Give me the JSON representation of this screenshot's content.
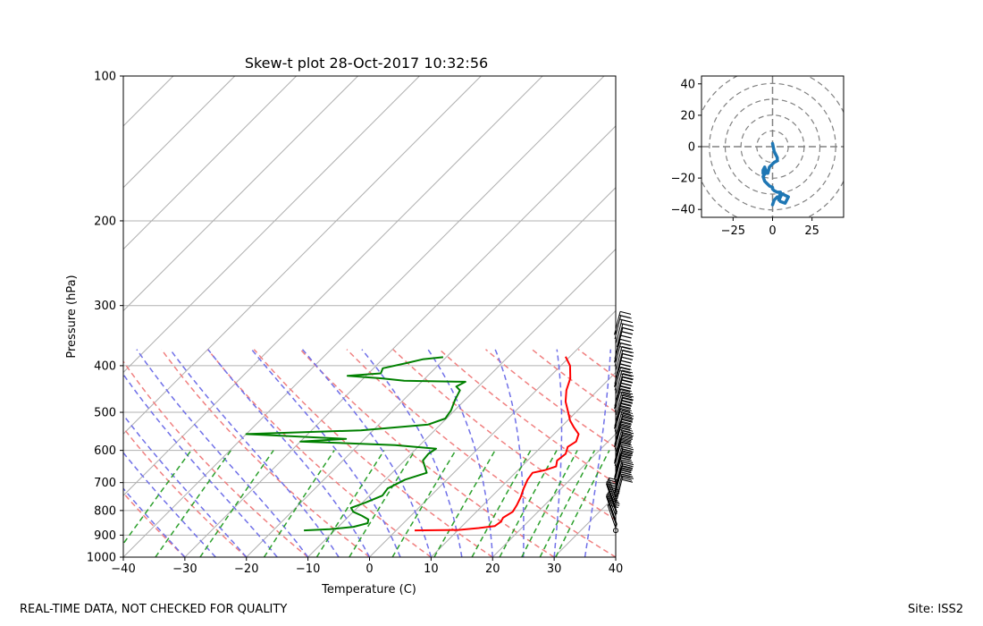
{
  "chart_data": [
    {
      "type": "skew-t",
      "title": "Skew-t plot 28-Oct-2017 10:32:56",
      "xlabel": "Temperature (C)",
      "ylabel": "Pressure (hPa)",
      "xlim": [
        -40,
        40
      ],
      "ylim": [
        1000,
        100
      ],
      "x_ticks": [
        -40,
        -30,
        -20,
        -10,
        0,
        10,
        20,
        30,
        40
      ],
      "x_tick_labels": [
        "−40",
        "−30",
        "−20",
        "−10",
        "0",
        "10",
        "20",
        "30",
        "40"
      ],
      "y_ticks": [
        100,
        200,
        300,
        400,
        500,
        600,
        700,
        800,
        900,
        1000
      ],
      "y_tick_labels": [
        "100",
        "200",
        "300",
        "400",
        "500",
        "600",
        "700",
        "800",
        "900",
        "1000"
      ],
      "grid": true,
      "series": [
        {
          "name": "Temperature",
          "color": "#ff0000",
          "points": [
            {
              "p": 880,
              "t": 3.0
            },
            {
              "p": 878,
              "t": 10.0
            },
            {
              "p": 870,
              "t": 13.0
            },
            {
              "p": 862,
              "t": 15.3
            },
            {
              "p": 845,
              "t": 15.6
            },
            {
              "p": 828,
              "t": 15.3
            },
            {
              "p": 805,
              "t": 15.9
            },
            {
              "p": 780,
              "t": 15.5
            },
            {
              "p": 750,
              "t": 14.8
            },
            {
              "p": 720,
              "t": 13.9
            },
            {
              "p": 690,
              "t": 13.1
            },
            {
              "p": 668,
              "t": 12.8
            },
            {
              "p": 660,
              "t": 14.3
            },
            {
              "p": 648,
              "t": 15.6
            },
            {
              "p": 630,
              "t": 14.8
            },
            {
              "p": 610,
              "t": 15.1
            },
            {
              "p": 590,
              "t": 14.3
            },
            {
              "p": 575,
              "t": 14.8
            },
            {
              "p": 555,
              "t": 14.0
            },
            {
              "p": 538,
              "t": 12.2
            },
            {
              "p": 520,
              "t": 10.4
            },
            {
              "p": 498,
              "t": 8.6
            },
            {
              "p": 475,
              "t": 6.6
            },
            {
              "p": 450,
              "t": 4.9
            },
            {
              "p": 425,
              "t": 3.6
            },
            {
              "p": 400,
              "t": 1.5
            },
            {
              "p": 383,
              "t": -0.7
            }
          ]
        },
        {
          "name": "Dewpoint",
          "color": "#008000",
          "points": [
            {
              "p": 880,
              "t": -15.0
            },
            {
              "p": 875,
              "t": -11.0
            },
            {
              "p": 865,
              "t": -7.5
            },
            {
              "p": 850,
              "t": -5.8
            },
            {
              "p": 835,
              "t": -6.3
            },
            {
              "p": 820,
              "t": -8.0
            },
            {
              "p": 805,
              "t": -10.0
            },
            {
              "p": 790,
              "t": -11.0
            },
            {
              "p": 770,
              "t": -9.5
            },
            {
              "p": 745,
              "t": -7.9
            },
            {
              "p": 720,
              "t": -8.2
            },
            {
              "p": 690,
              "t": -6.8
            },
            {
              "p": 668,
              "t": -4.4
            },
            {
              "p": 650,
              "t": -5.6
            },
            {
              "p": 630,
              "t": -7.0
            },
            {
              "p": 610,
              "t": -7.2
            },
            {
              "p": 595,
              "t": -6.8
            },
            {
              "p": 585,
              "t": -14.0
            },
            {
              "p": 575,
              "t": -30.0
            },
            {
              "p": 568,
              "t": -23.0
            },
            {
              "p": 555,
              "t": -40.0
            },
            {
              "p": 545,
              "t": -22.0
            },
            {
              "p": 530,
              "t": -12.0
            },
            {
              "p": 515,
              "t": -10.2
            },
            {
              "p": 495,
              "t": -10.6
            },
            {
              "p": 472,
              "t": -11.6
            },
            {
              "p": 450,
              "t": -12.4
            },
            {
              "p": 442,
              "t": -13.6
            },
            {
              "p": 432,
              "t": -12.9
            },
            {
              "p": 430,
              "t": -23.0
            },
            {
              "p": 425,
              "t": -27.0
            },
            {
              "p": 420,
              "t": -33.0
            },
            {
              "p": 415,
              "t": -28.0
            },
            {
              "p": 405,
              "t": -28.5
            },
            {
              "p": 395,
              "t": -25.5
            },
            {
              "p": 388,
              "t": -23.5
            },
            {
              "p": 384,
              "t": -20.5
            }
          ]
        }
      ],
      "wind_barbs_pressure_range": [
        880,
        345
      ]
    },
    {
      "type": "hodograph",
      "xlim": [
        -45,
        45
      ],
      "ylim": [
        -45,
        45
      ],
      "x_ticks": [
        -25,
        0,
        25
      ],
      "x_tick_labels": [
        "−25",
        "0",
        "25"
      ],
      "y_ticks": [
        40,
        20,
        0,
        -20,
        -40
      ],
      "y_tick_labels": [
        "40",
        "20",
        "0",
        "−20",
        "−40"
      ],
      "rings": [
        10,
        20,
        30,
        40,
        50
      ],
      "series": [
        {
          "name": "Wind",
          "color": "#1f77b4",
          "u": [
            0,
            1,
            3,
            3,
            1,
            0,
            -2,
            -3,
            -6,
            -6,
            -5,
            -4,
            -6,
            -5,
            -2,
            0,
            0,
            1,
            3,
            5,
            4,
            6,
            10,
            8,
            5,
            3,
            1,
            0
          ],
          "v": [
            2,
            -3,
            -7,
            -9,
            -10,
            -11,
            -13,
            -17,
            -17,
            -15,
            -13,
            -16,
            -19,
            -22,
            -25,
            -26,
            -27,
            -28,
            -29,
            -29,
            -34,
            -30,
            -32,
            -36,
            -35,
            -32,
            -34,
            -37
          ]
        }
      ]
    }
  ],
  "footer": {
    "left": "REAL-TIME DATA, NOT CHECKED FOR QUALITY",
    "right": "Site: ISS2"
  }
}
